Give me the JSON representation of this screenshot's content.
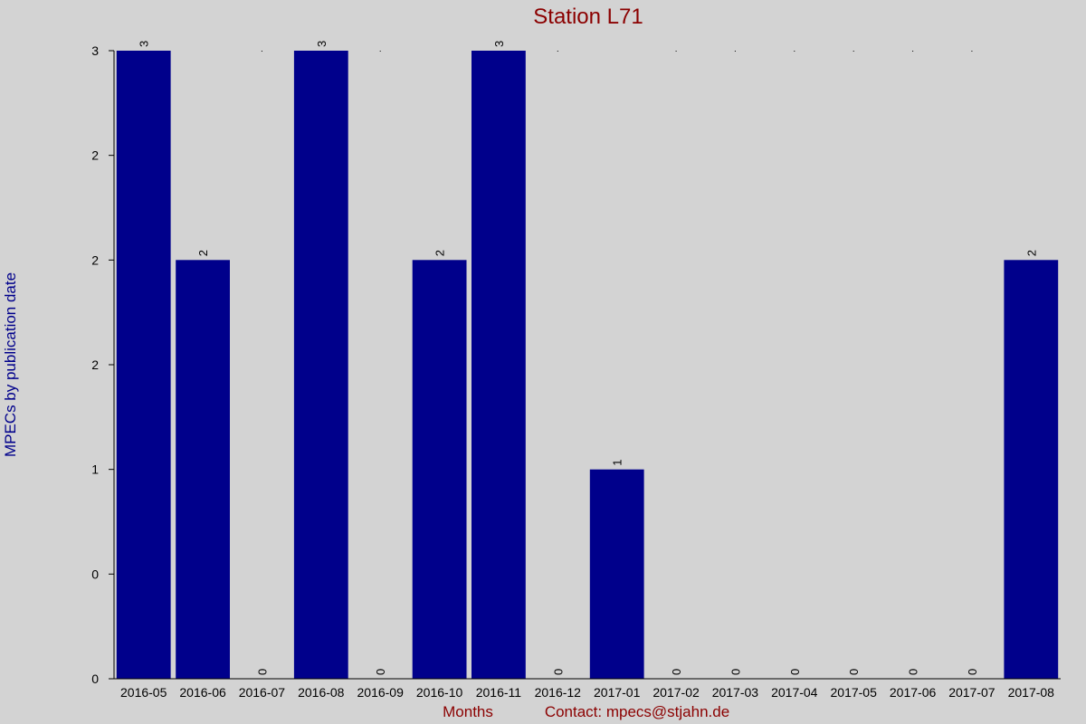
{
  "chart_data": {
    "type": "bar",
    "title": "Station L71",
    "ylabel": "MPECs by publication date",
    "xlabel": "Months",
    "contact": "Contact: mpecs@stjahn.de",
    "categories": [
      "2016-05",
      "2016-06",
      "2016-07",
      "2016-08",
      "2016-09",
      "2016-10",
      "2016-11",
      "2016-12",
      "2017-01",
      "2017-02",
      "2017-03",
      "2017-04",
      "2017-05",
      "2017-06",
      "2017-07",
      "2017-08"
    ],
    "values": [
      3,
      2,
      0,
      3,
      0,
      2,
      3,
      0,
      1,
      0,
      0,
      0,
      0,
      0,
      0,
      2
    ],
    "value_labels": [
      "3",
      "2",
      "0",
      "3",
      "0",
      "2",
      "3",
      "0",
      "1",
      "0",
      "0",
      "0",
      "0",
      "0",
      "0",
      "2"
    ],
    "ylim": [
      0,
      3
    ],
    "yticks": [
      0,
      0.5,
      1,
      1.5,
      2,
      2.5,
      3
    ],
    "ytick_labels": [
      "0",
      "0",
      "1",
      "2",
      "2",
      "2",
      "3"
    ],
    "bar_color": "#00008b",
    "grid": false
  }
}
